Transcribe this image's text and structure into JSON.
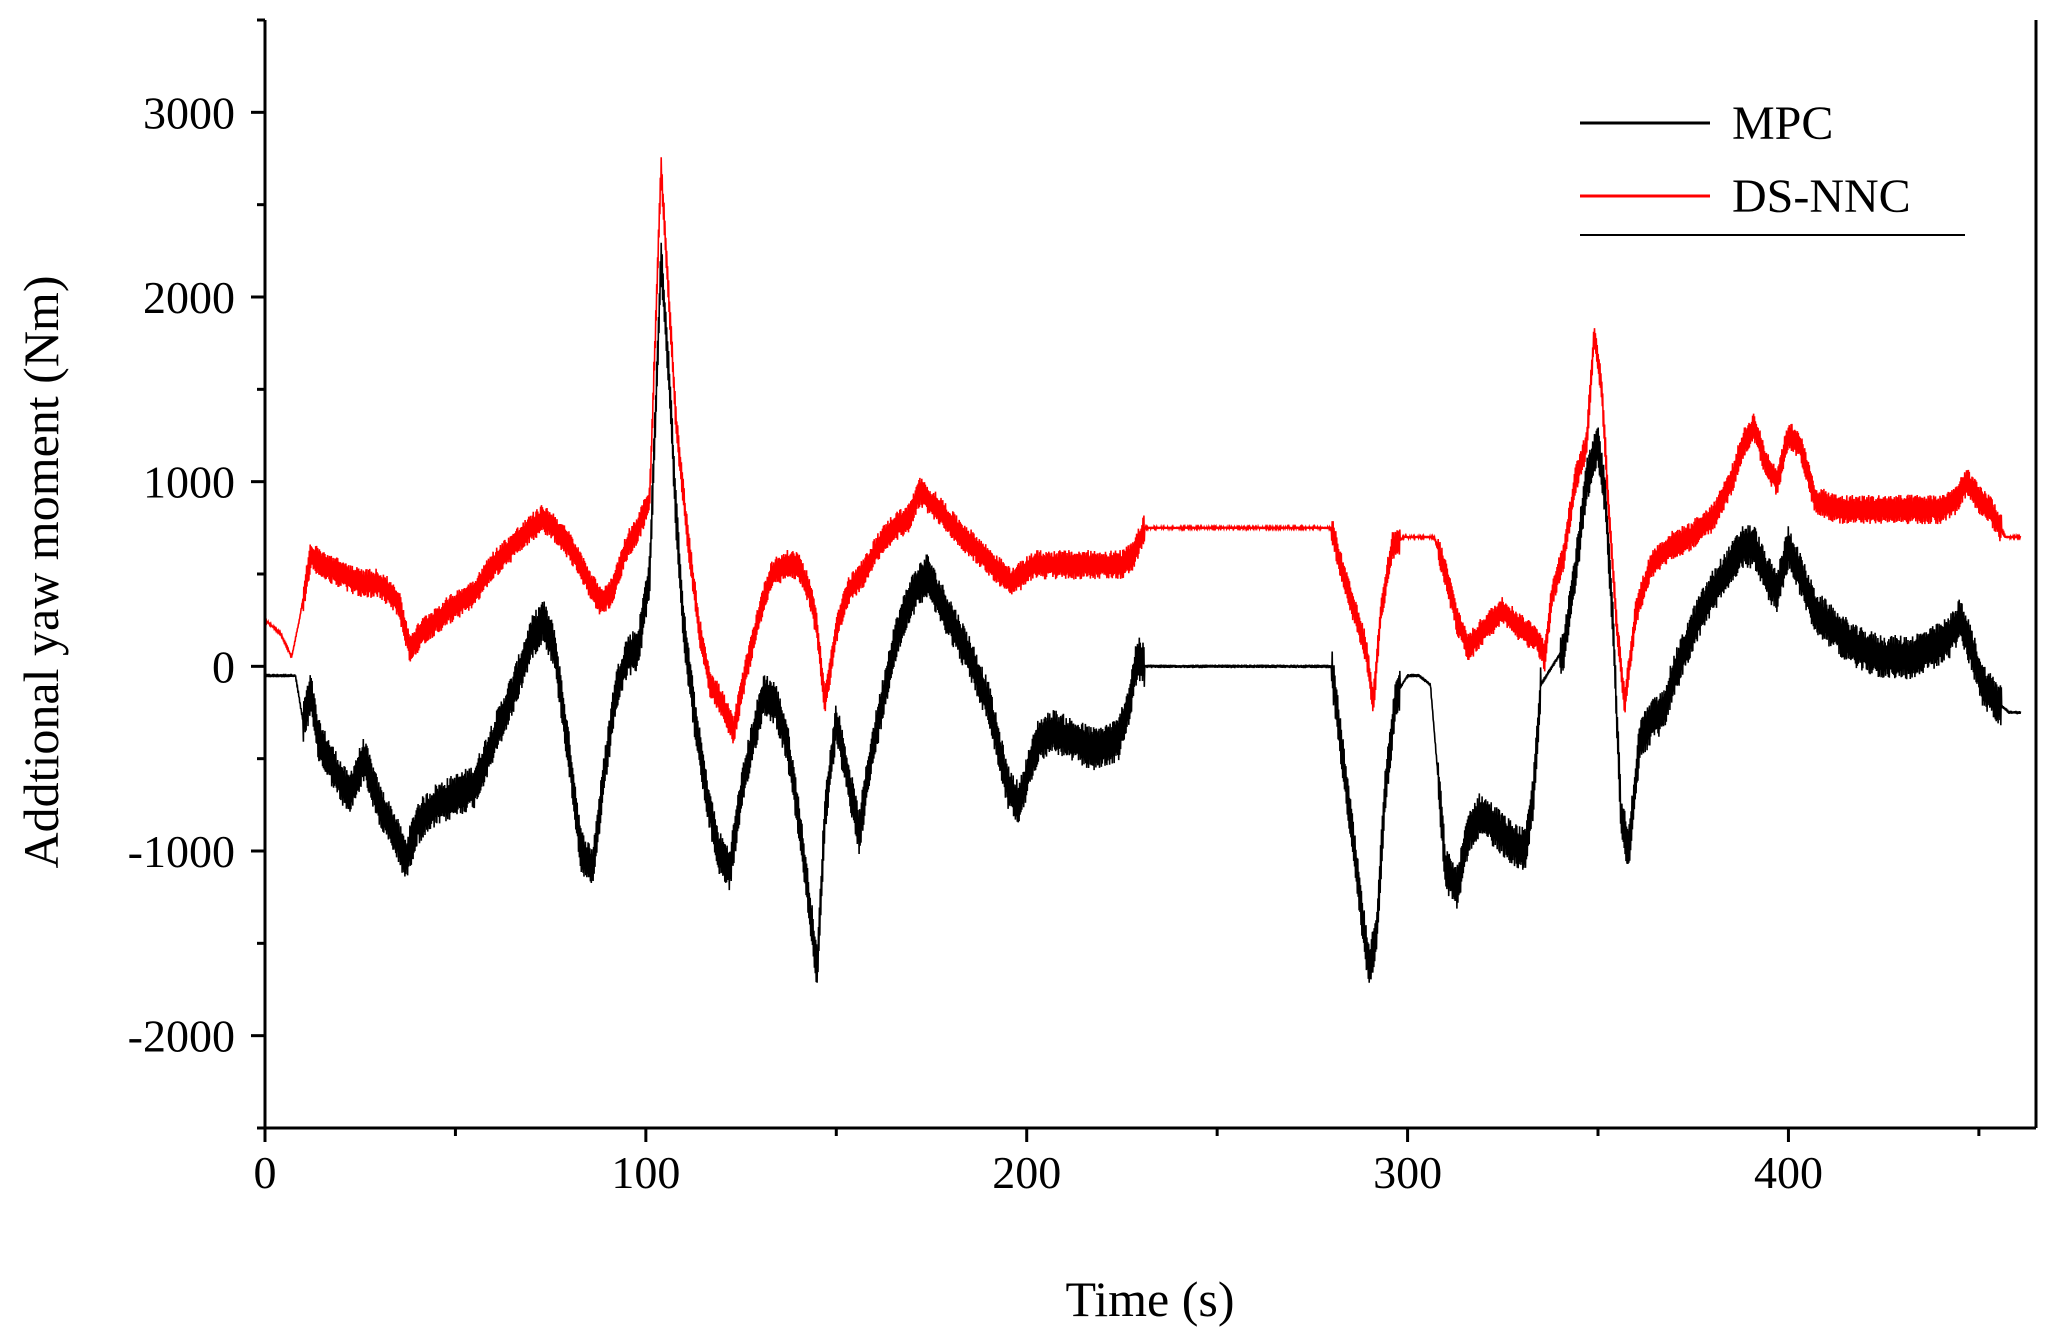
{
  "chart_data": {
    "type": "line",
    "title": "",
    "xlabel": "Time (s)",
    "ylabel": "Addtional yaw moment (Nm)",
    "xlim": [
      0,
      465
    ],
    "ylim": [
      -2500,
      3500
    ],
    "x_ticks": [
      0,
      100,
      200,
      300,
      400
    ],
    "x_tick_labels": [
      "0",
      "100",
      "200",
      "300",
      "400"
    ],
    "y_ticks": [
      -2000,
      -1000,
      0,
      1000,
      2000,
      3000
    ],
    "y_tick_labels": [
      "-2000",
      "-1000",
      "0",
      "1000",
      "2000",
      "3000"
    ],
    "grid": false,
    "legend": "top-right",
    "series": [
      {
        "name": "MPC",
        "color": "#000000",
        "band": 120,
        "x": [
          0,
          8,
          10,
          12,
          14,
          18,
          22,
          26,
          30,
          34,
          37,
          40,
          45,
          50,
          55,
          60,
          65,
          70,
          73,
          76,
          80,
          83,
          86,
          89,
          92,
          95,
          98,
          101,
          104,
          106,
          108,
          110,
          113,
          116,
          119,
          122,
          125,
          128,
          131,
          134,
          137,
          140,
          143,
          145,
          147,
          150,
          153,
          156,
          159,
          162,
          165,
          169,
          172,
          174,
          176,
          180,
          185,
          190,
          195,
          198,
          200,
          203,
          207,
          212,
          218,
          224,
          227,
          229,
          231,
          235,
          250,
          265,
          280,
          283,
          286,
          288,
          290,
          292,
          294,
          297,
          300,
          303,
          306,
          308,
          310,
          313,
          316,
          319,
          322,
          327,
          331,
          333,
          335,
          338,
          341,
          344,
          347,
          350,
          352,
          354,
          356,
          358,
          361,
          364,
          367,
          370,
          373,
          376,
          380,
          385,
          388,
          391,
          394,
          397,
          400,
          403,
          407,
          412,
          418,
          425,
          432,
          438,
          442,
          445,
          448,
          451,
          455,
          458,
          461
        ],
        "values": [
          -50,
          -50,
          -300,
          -150,
          -400,
          -550,
          -700,
          -500,
          -750,
          -900,
          -1050,
          -850,
          -750,
          -700,
          -650,
          -400,
          -150,
          150,
          250,
          100,
          -500,
          -1000,
          -1100,
          -600,
          -150,
          50,
          100,
          500,
          2200,
          1600,
          800,
          200,
          -300,
          -700,
          -1000,
          -1100,
          -700,
          -400,
          -150,
          -200,
          -400,
          -800,
          -1300,
          -1650,
          -800,
          -300,
          -600,
          -900,
          -500,
          -200,
          100,
          350,
          450,
          500,
          400,
          250,
          50,
          -200,
          -650,
          -750,
          -600,
          -400,
          -350,
          -400,
          -450,
          -400,
          -200,
          50,
          0,
          0,
          0,
          0,
          0,
          -500,
          -1000,
          -1350,
          -1650,
          -1400,
          -700,
          -150,
          -50,
          -50,
          -100,
          -600,
          -1100,
          -1200,
          -900,
          -800,
          -850,
          -950,
          -1000,
          -700,
          -100,
          0,
          100,
          500,
          1000,
          1200,
          900,
          200,
          -800,
          -1000,
          -400,
          -300,
          -250,
          -50,
          100,
          250,
          400,
          550,
          650,
          650,
          500,
          400,
          650,
          500,
          300,
          200,
          100,
          50,
          50,
          100,
          150,
          250,
          100,
          -100,
          -200,
          -250,
          -250
        ]
      },
      {
        "name": "DS-NNC",
        "color": "#ff0000",
        "band": 80,
        "x": [
          0,
          4,
          7,
          9,
          12,
          15,
          20,
          25,
          30,
          35,
          38,
          42,
          48,
          55,
          60,
          65,
          70,
          73,
          76,
          80,
          84,
          88,
          91,
          95,
          98,
          101,
          104,
          106,
          108,
          111,
          114,
          117,
          120,
          123,
          126,
          130,
          133,
          137,
          140,
          143,
          145,
          147,
          150,
          153,
          157,
          161,
          165,
          169,
          172,
          174,
          177,
          181,
          186,
          191,
          196,
          199,
          202,
          207,
          213,
          219,
          225,
          228,
          231,
          240,
          260,
          280,
          283,
          286,
          289,
          291,
          293,
          296,
          299,
          303,
          307,
          310,
          313,
          316,
          320,
          325,
          330,
          334,
          336,
          338,
          341,
          344,
          347,
          349,
          351,
          353,
          355,
          357,
          360,
          364,
          369,
          374,
          380,
          385,
          388,
          391,
          394,
          397,
          400,
          403,
          407,
          413,
          420,
          427,
          434,
          440,
          444,
          447,
          450,
          453,
          457,
          461
        ],
        "values": [
          250,
          180,
          50,
          250,
          600,
          550,
          500,
          450,
          450,
          350,
          100,
          200,
          300,
          400,
          550,
          650,
          750,
          800,
          750,
          650,
          500,
          350,
          400,
          650,
          750,
          900,
          2700,
          2000,
          1300,
          700,
          200,
          -100,
          -200,
          -350,
          -50,
          300,
          500,
          550,
          550,
          400,
          200,
          -200,
          200,
          400,
          500,
          650,
          750,
          800,
          950,
          900,
          850,
          750,
          650,
          550,
          450,
          500,
          550,
          550,
          550,
          550,
          550,
          600,
          750,
          750,
          750,
          750,
          500,
          300,
          100,
          -200,
          300,
          650,
          700,
          700,
          700,
          500,
          250,
          100,
          200,
          300,
          200,
          150,
          50,
          400,
          600,
          1000,
          1200,
          1800,
          1500,
          800,
          200,
          -200,
          300,
          550,
          650,
          700,
          800,
          1000,
          1200,
          1300,
          1100,
          1000,
          1250,
          1200,
          900,
          850,
          850,
          850,
          850,
          850,
          900,
          1000,
          900,
          850,
          700,
          700
        ]
      }
    ]
  }
}
